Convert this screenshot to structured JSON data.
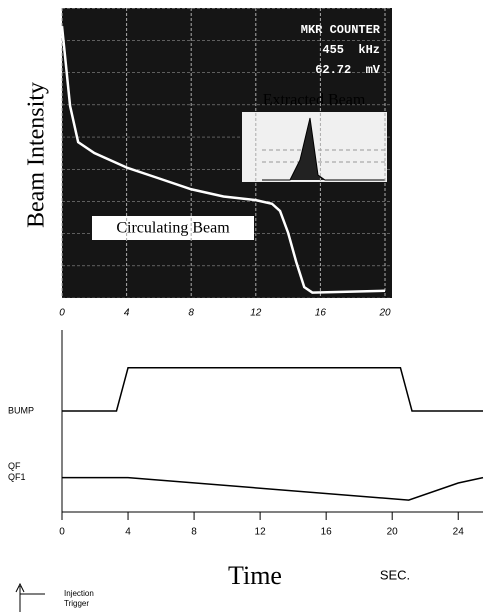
{
  "chart_data": [
    {
      "type": "line",
      "y_label": "Beam Intensity",
      "annotations": [
        "MKR COUNTER",
        "455  kHz",
        "62.72  mV",
        "Extracted Beam",
        "Circulating Beam"
      ],
      "xlim": [
        0,
        20
      ],
      "xticks": [
        0,
        4,
        8,
        12,
        16,
        20
      ],
      "ylim": [
        0,
        8
      ],
      "grid": true,
      "series": [
        {
          "color": "#ffffff",
          "x": [
            0,
            0.5,
            1,
            2,
            4,
            6,
            8,
            10,
            12,
            13,
            13.5,
            14,
            14.5,
            15,
            15.5,
            20
          ],
          "values": [
            7.5,
            5.3,
            4.3,
            4.0,
            3.6,
            3.3,
            3.0,
            2.8,
            2.7,
            2.6,
            2.4,
            1.8,
            1.0,
            0.3,
            0.15,
            0.2
          ]
        }
      ]
    },
    {
      "type": "line",
      "x_label": "Time",
      "x_unit": "SEC.",
      "annotations": [
        "Injection",
        "Trigger"
      ],
      "xlim": [
        0,
        25.5
      ],
      "xticks": [
        0,
        4,
        8,
        12,
        16,
        20,
        24
      ],
      "ylim": [
        0,
        10
      ],
      "grid": false,
      "series": [
        {
          "names": [
            "BUMP"
          ],
          "color": "#000000",
          "x": [
            0,
            3.3,
            4,
            20.5,
            21.2,
            25.5
          ],
          "values": [
            5.5,
            5.5,
            7.9,
            7.9,
            5.5,
            5.5
          ]
        },
        {
          "names": [
            "QF",
            "QF1"
          ],
          "color": "#000000",
          "x": [
            0,
            4,
            21,
            24,
            25.5
          ],
          "values": [
            1.8,
            1.8,
            0.55,
            1.5,
            1.8
          ]
        }
      ]
    }
  ]
}
